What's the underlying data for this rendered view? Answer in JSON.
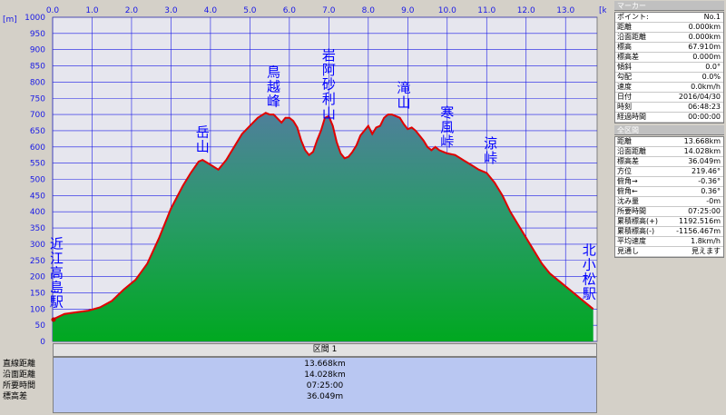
{
  "chart_data": {
    "type": "area",
    "x_unit": "[km]",
    "y_unit": "[m]",
    "xlim": [
      0,
      13.8
    ],
    "ylim": [
      0,
      1000
    ],
    "x_ticks": [
      "0.0",
      "1.0",
      "2.0",
      "3.0",
      "4.0",
      "5.0",
      "6.0",
      "7.0",
      "8.0",
      "9.0",
      "10.0",
      "11.0",
      "12.0",
      "13.0"
    ],
    "y_ticks": [
      "0",
      "50",
      "100",
      "150",
      "200",
      "250",
      "300",
      "350",
      "400",
      "450",
      "500",
      "550",
      "600",
      "650",
      "700",
      "750",
      "800",
      "850",
      "900",
      "950",
      "1000"
    ],
    "grid": true,
    "series": [
      {
        "x": [
          0.0,
          0.3,
          0.6,
          0.9,
          1.2,
          1.5,
          1.8,
          2.1,
          2.4,
          2.7,
          3.0,
          3.3,
          3.5,
          3.7,
          3.8,
          4.0,
          4.2,
          4.4,
          4.6,
          4.8,
          5.0,
          5.2,
          5.4,
          5.5,
          5.6,
          5.7,
          5.8,
          5.9,
          6.0,
          6.1,
          6.2,
          6.3,
          6.4,
          6.5,
          6.6,
          6.7,
          6.8,
          6.9,
          7.0,
          7.1,
          7.2,
          7.3,
          7.4,
          7.5,
          7.6,
          7.7,
          7.8,
          7.9,
          8.0,
          8.1,
          8.2,
          8.3,
          8.4,
          8.5,
          8.6,
          8.7,
          8.8,
          8.9,
          9.0,
          9.1,
          9.2,
          9.3,
          9.4,
          9.5,
          9.6,
          9.7,
          9.8,
          9.9,
          10.0,
          10.2,
          10.4,
          10.6,
          10.8,
          11.0,
          11.2,
          11.4,
          11.6,
          11.8,
          12.0,
          12.2,
          12.4,
          12.6,
          12.8,
          13.0,
          13.2,
          13.4,
          13.6,
          13.7
        ],
        "y": [
          67.9,
          85,
          90,
          95,
          105,
          125,
          160,
          190,
          240,
          320,
          410,
          480,
          520,
          555,
          560,
          545,
          530,
          560,
          600,
          640,
          665,
          690,
          705,
          700,
          700,
          688,
          675,
          690,
          690,
          680,
          660,
          620,
          590,
          575,
          585,
          620,
          650,
          690,
          695,
          665,
          615,
          580,
          565,
          570,
          585,
          605,
          635,
          650,
          665,
          640,
          660,
          665,
          690,
          700,
          700,
          695,
          690,
          670,
          655,
          660,
          650,
          635,
          620,
          600,
          590,
          600,
          590,
          585,
          580,
          575,
          560,
          545,
          530,
          520,
          490,
          450,
          400,
          360,
          320,
          280,
          240,
          210,
          190,
          170,
          150,
          130,
          110,
          100
        ]
      }
    ],
    "annotations": [
      {
        "label": "近江高島駅",
        "x": 0.1,
        "y": 85
      },
      {
        "label": "岳山",
        "x": 3.8,
        "y": 565
      },
      {
        "label": "鳥越峰",
        "x": 5.6,
        "y": 705
      },
      {
        "label": "岩阿砂利山",
        "x": 7.0,
        "y": 695
      },
      {
        "label": "滝山",
        "x": 8.9,
        "y": 700
      },
      {
        "label": "寒風峠",
        "x": 10.0,
        "y": 580
      },
      {
        "label": "涼峠",
        "x": 11.1,
        "y": 530
      },
      {
        "label": "北小松駅",
        "x": 13.6,
        "y": 110
      }
    ]
  },
  "colors": {
    "plot_bg": "#e6e6ee",
    "grid": "#1a1ae6",
    "fill_top": "#4f7f9b",
    "fill_bottom": "#00a820",
    "profile_line": "#e00000",
    "peak_label": "#0000ff"
  },
  "sidebar": {
    "marker_title": "マーカー",
    "marker_rows": [
      {
        "k": "ポイント:",
        "v": "No.1"
      },
      {
        "k": "距離",
        "v": "0.000km"
      },
      {
        "k": "沿面距離",
        "v": "0.000km"
      },
      {
        "k": "標高",
        "v": "67.910m"
      },
      {
        "k": "標高差",
        "v": "0.000m"
      },
      {
        "k": "傾斜",
        "v": "0.0°"
      },
      {
        "k": "勾配",
        "v": "0.0%"
      },
      {
        "k": "速度",
        "v": "0.0km/h"
      },
      {
        "k": "日付",
        "v": "2016/04/30"
      },
      {
        "k": "時刻",
        "v": "06:48:23"
      },
      {
        "k": "経過時間",
        "v": "00:00:00"
      }
    ],
    "section_title": "全区間",
    "section_rows": [
      {
        "k": "距離",
        "v": "13.668km"
      },
      {
        "k": "沿面距離",
        "v": "14.028km"
      },
      {
        "k": "標高差",
        "v": "36.049m"
      },
      {
        "k": "方位",
        "v": "219.46°"
      },
      {
        "k": "俯角→",
        "v": "-0.36°"
      },
      {
        "k": "俯角←",
        "v": "0.36°"
      },
      {
        "k": "沈み量",
        "v": "-0m"
      },
      {
        "k": "所要時間",
        "v": "07:25:00"
      },
      {
        "k": "累積標高(+)",
        "v": "1192.516m"
      },
      {
        "k": "累積標高(-)",
        "v": "-1156.467m"
      },
      {
        "k": "平均速度",
        "v": "1.8km/h"
      },
      {
        "k": "見通し",
        "v": "見えます"
      }
    ]
  },
  "segment": {
    "header": "区間 1",
    "rows": [
      {
        "label": "直線距離",
        "value": "13.668km"
      },
      {
        "label": "沿面距離",
        "value": "14.028km"
      },
      {
        "label": "所要時間",
        "value": "07:25:00"
      },
      {
        "label": "標高差",
        "value": "36.049m"
      }
    ]
  }
}
